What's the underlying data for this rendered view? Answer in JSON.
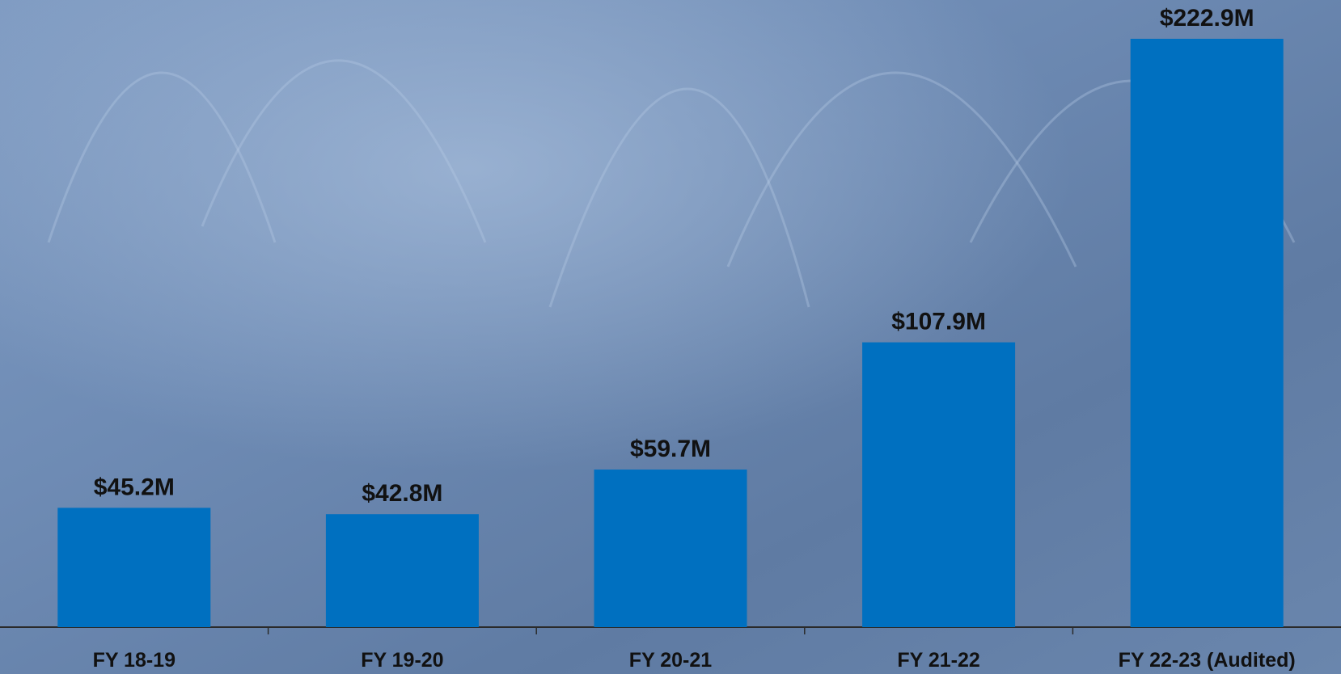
{
  "chart_data": {
    "type": "bar",
    "categories": [
      "FY 18-19",
      "FY 19-20",
      "FY 20-21",
      "FY 21-22",
      "FY 22-23 (Audited)"
    ],
    "values": [
      45.2,
      42.8,
      59.7,
      107.9,
      222.9
    ],
    "value_labels": [
      "$45.2M",
      "$42.8M",
      "$59.7M",
      "$107.9M",
      "$222.9M"
    ],
    "color": "#0070c0"
  }
}
